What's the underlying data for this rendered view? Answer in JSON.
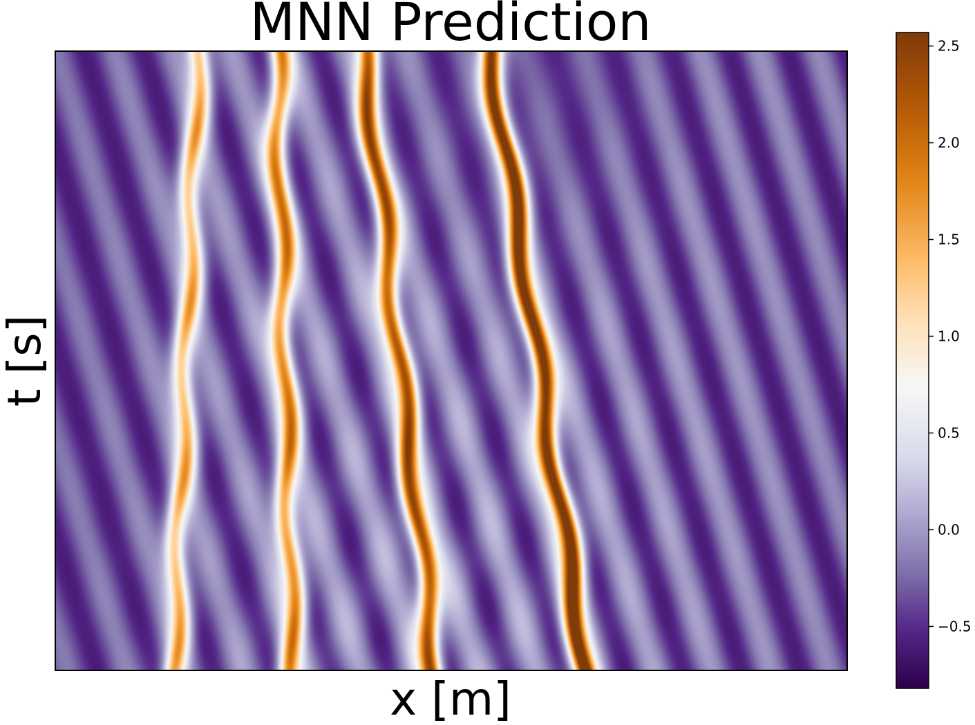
{
  "chart_data": {
    "type": "heatmap",
    "title": "MNN Prediction",
    "xlabel": "x [m]",
    "ylabel": "t [s]",
    "x_ticks": [],
    "y_ticks": [],
    "colormap": "PuOr_r",
    "colorbar": {
      "vmin": -0.82,
      "vmax": 2.57,
      "ticks": [
        2.5,
        2.0,
        1.5,
        1.0,
        0.5,
        0.0,
        -0.5
      ],
      "tick_labels": [
        "2.5",
        "2.0",
        "1.5",
        "1.0",
        "0.5",
        "0.0",
        "−0.5"
      ]
    },
    "colors": {
      "low": "#2d004b",
      "mid": "#f7f7f7",
      "high": "#7f3b08"
    },
    "field_description": "multi-soliton interaction pattern: diagonal bands drifting over time",
    "solitons_x_at_top": [
      0.18,
      0.28,
      0.39,
      0.55
    ],
    "solitons_x_at_bottom": [
      0.15,
      0.3,
      0.48,
      0.67
    ],
    "soliton_amplitudes": [
      1.2,
      1.45,
      1.95,
      2.5
    ]
  }
}
